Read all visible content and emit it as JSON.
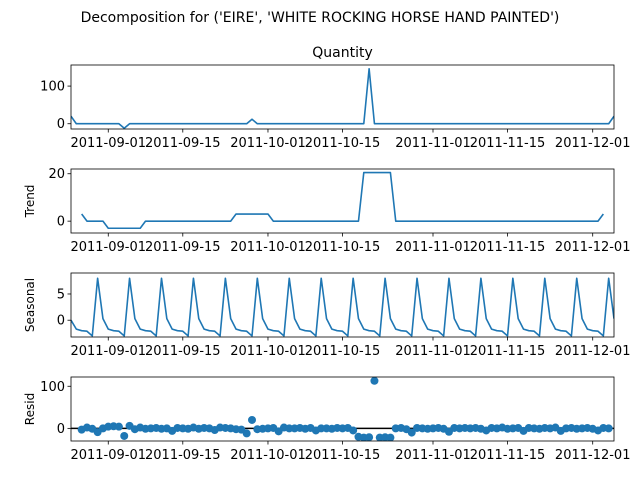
{
  "chart_data": {
    "type": "line",
    "suptitle": "Decomposition for ('EIRE', 'WHITE ROCKING HORSE HAND PAINTED')",
    "x_start": "2011-08-25",
    "x_end": "2011-12-05",
    "x_ticks": [
      "2011-09-01",
      "2011-09-15",
      "2011-10-01",
      "2011-10-15",
      "2011-11-01",
      "2011-11-15",
      "2011-12-01"
    ],
    "colors": {
      "line": "#1f77b4",
      "axis": "#000000",
      "zero_line": "#000000"
    },
    "panels": [
      {
        "name": "observed",
        "title": "Quantity",
        "ylabel": "",
        "style": "line",
        "ylim": [
          -14,
          156
        ],
        "yticks": [
          0,
          100
        ],
        "points": [
          [
            "2011-08-25",
            20
          ],
          [
            "2011-08-26",
            0
          ],
          [
            "2011-09-03",
            0
          ],
          [
            "2011-09-04",
            -12
          ],
          [
            "2011-09-05",
            0
          ],
          [
            "2011-09-27",
            0
          ],
          [
            "2011-09-28",
            12
          ],
          [
            "2011-09-29",
            0
          ],
          [
            "2011-10-19",
            0
          ],
          [
            "2011-10-20",
            146
          ],
          [
            "2011-10-21",
            0
          ],
          [
            "2011-12-04",
            0
          ],
          [
            "2011-12-05",
            20
          ]
        ]
      },
      {
        "name": "trend",
        "title": "",
        "ylabel": "Trend",
        "style": "line",
        "ylim": [
          -5,
          22
        ],
        "yticks": [
          0,
          20
        ],
        "points": [
          [
            "2011-08-27",
            3
          ],
          [
            "2011-08-28",
            0
          ],
          [
            "2011-08-31",
            0
          ],
          [
            "2011-09-01",
            -3
          ],
          [
            "2011-09-07",
            -3
          ],
          [
            "2011-09-08",
            0
          ],
          [
            "2011-09-24",
            0
          ],
          [
            "2011-09-25",
            3
          ],
          [
            "2011-10-01",
            3
          ],
          [
            "2011-10-02",
            0
          ],
          [
            "2011-10-18",
            0
          ],
          [
            "2011-10-19",
            20.5
          ],
          [
            "2011-10-24",
            20.5
          ],
          [
            "2011-10-25",
            0
          ],
          [
            "2011-12-02",
            0
          ],
          [
            "2011-12-03",
            3
          ]
        ]
      },
      {
        "name": "seasonal",
        "title": "",
        "ylabel": "Seasonal",
        "style": "line",
        "ylim": [
          -3.2,
          9.0
        ],
        "yticks": [
          0,
          5
        ],
        "period_days": 6,
        "first_peak": "2011-08-30",
        "cycle": [
          8.0,
          0.3,
          -1.7,
          -2.0,
          -2.1,
          -3.0
        ],
        "start_value": 0.0
      },
      {
        "name": "resid",
        "title": "",
        "ylabel": "Resid",
        "style": "scatter",
        "ylim": [
          -30,
          122
        ],
        "yticks": [
          0,
          100
        ],
        "zero_line": true,
        "points": [
          [
            "2011-08-27",
            -3
          ],
          [
            "2011-08-28",
            2
          ],
          [
            "2011-08-29",
            -1
          ],
          [
            "2011-08-30",
            -9
          ],
          [
            "2011-08-31",
            0
          ],
          [
            "2011-09-01",
            4
          ],
          [
            "2011-09-02",
            5
          ],
          [
            "2011-09-03",
            4
          ],
          [
            "2011-09-04",
            -18
          ],
          [
            "2011-09-05",
            6
          ],
          [
            "2011-09-06",
            -2
          ],
          [
            "2011-09-07",
            2
          ],
          [
            "2011-09-08",
            -1
          ],
          [
            "2011-09-09",
            0
          ],
          [
            "2011-09-10",
            1
          ],
          [
            "2011-09-11",
            -1
          ],
          [
            "2011-09-12",
            0
          ],
          [
            "2011-09-13",
            -6
          ],
          [
            "2011-09-14",
            1
          ],
          [
            "2011-09-15",
            0
          ],
          [
            "2011-09-16",
            -1
          ],
          [
            "2011-09-17",
            2
          ],
          [
            "2011-09-18",
            -1
          ],
          [
            "2011-09-19",
            1
          ],
          [
            "2011-09-20",
            0
          ],
          [
            "2011-09-21",
            -4
          ],
          [
            "2011-09-22",
            2
          ],
          [
            "2011-09-23",
            1
          ],
          [
            "2011-09-24",
            0
          ],
          [
            "2011-09-25",
            -2
          ],
          [
            "2011-09-26",
            -3
          ],
          [
            "2011-09-27",
            -12
          ],
          [
            "2011-09-28",
            20
          ],
          [
            "2011-09-29",
            -2
          ],
          [
            "2011-09-30",
            -1
          ],
          [
            "2011-10-01",
            0
          ],
          [
            "2011-10-02",
            1
          ],
          [
            "2011-10-03",
            -7
          ],
          [
            "2011-10-04",
            2
          ],
          [
            "2011-10-05",
            0
          ],
          [
            "2011-10-06",
            0
          ],
          [
            "2011-10-07",
            1
          ],
          [
            "2011-10-08",
            -1
          ],
          [
            "2011-10-09",
            1
          ],
          [
            "2011-10-10",
            -5
          ],
          [
            "2011-10-11",
            0
          ],
          [
            "2011-10-12",
            0
          ],
          [
            "2011-10-13",
            -1
          ],
          [
            "2011-10-14",
            1
          ],
          [
            "2011-10-15",
            0
          ],
          [
            "2011-10-16",
            1
          ],
          [
            "2011-10-17",
            -5
          ],
          [
            "2011-10-18",
            -20
          ],
          [
            "2011-10-19",
            -22
          ],
          [
            "2011-10-20",
            -21
          ],
          [
            "2011-10-21",
            113
          ],
          [
            "2011-10-22",
            -22
          ],
          [
            "2011-10-23",
            -21
          ],
          [
            "2011-10-24",
            -22
          ],
          [
            "2011-10-25",
            0
          ],
          [
            "2011-10-26",
            1
          ],
          [
            "2011-10-27",
            -2
          ],
          [
            "2011-10-28",
            -10
          ],
          [
            "2011-10-29",
            1
          ],
          [
            "2011-10-30",
            0
          ],
          [
            "2011-10-31",
            -1
          ],
          [
            "2011-11-01",
            0
          ],
          [
            "2011-11-02",
            1
          ],
          [
            "2011-11-03",
            -1
          ],
          [
            "2011-11-04",
            -8
          ],
          [
            "2011-11-05",
            1
          ],
          [
            "2011-11-06",
            0
          ],
          [
            "2011-11-07",
            1
          ],
          [
            "2011-11-08",
            0
          ],
          [
            "2011-11-09",
            1
          ],
          [
            "2011-11-10",
            -1
          ],
          [
            "2011-11-11",
            -5
          ],
          [
            "2011-11-12",
            1
          ],
          [
            "2011-11-13",
            0
          ],
          [
            "2011-11-14",
            2
          ],
          [
            "2011-11-15",
            -1
          ],
          [
            "2011-11-16",
            0
          ],
          [
            "2011-11-17",
            1
          ],
          [
            "2011-11-18",
            -6
          ],
          [
            "2011-11-19",
            1
          ],
          [
            "2011-11-20",
            0
          ],
          [
            "2011-11-21",
            -1
          ],
          [
            "2011-11-22",
            1
          ],
          [
            "2011-11-23",
            0
          ],
          [
            "2011-11-24",
            2
          ],
          [
            "2011-11-25",
            -6
          ],
          [
            "2011-11-26",
            0
          ],
          [
            "2011-11-27",
            1
          ],
          [
            "2011-11-28",
            -1
          ],
          [
            "2011-11-29",
            0
          ],
          [
            "2011-11-30",
            1
          ],
          [
            "2011-12-01",
            -1
          ],
          [
            "2011-12-02",
            -5
          ],
          [
            "2011-12-03",
            1
          ],
          [
            "2011-12-04",
            0
          ]
        ]
      }
    ]
  }
}
